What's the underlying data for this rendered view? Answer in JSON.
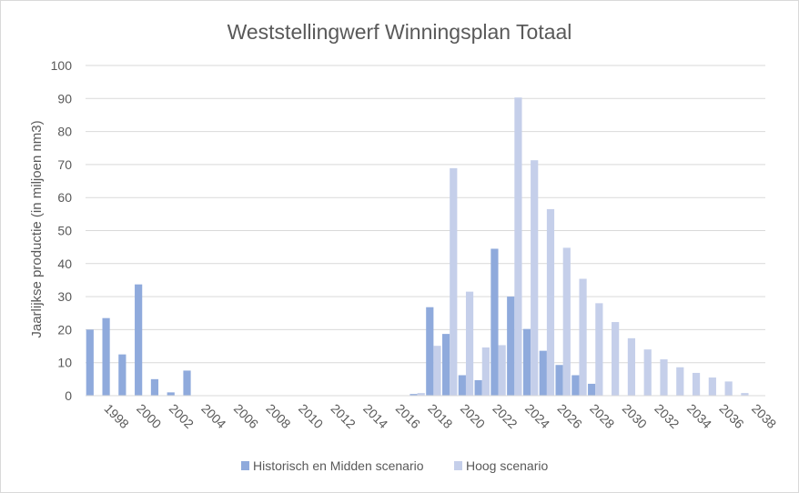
{
  "chart_data": {
    "type": "bar",
    "title": "Weststellingwerf Winningsplan Totaal",
    "xlabel": "",
    "ylabel": "Jaarlijkse  productie (in miljoen nm3)",
    "ylim": [
      0,
      100
    ],
    "yticks": [
      "0",
      "10",
      "20",
      "30",
      "40",
      "50",
      "60",
      "70",
      "80",
      "90",
      "100"
    ],
    "categories": [
      "1997",
      "1998",
      "1999",
      "2000",
      "2001",
      "2002",
      "2003",
      "2004",
      "2005",
      "2006",
      "2007",
      "2008",
      "2009",
      "2010",
      "2011",
      "2012",
      "2013",
      "2014",
      "2015",
      "2016",
      "2017",
      "2018",
      "2019",
      "2020",
      "2021",
      "2022",
      "2023",
      "2024",
      "2025",
      "2026",
      "2027",
      "2028",
      "2029",
      "2030",
      "2031",
      "2032",
      "2033",
      "2034",
      "2035",
      "2036",
      "2037",
      "2038"
    ],
    "tick_labels": [
      "1998",
      "2000",
      "2002",
      "2004",
      "2006",
      "2008",
      "2010",
      "2012",
      "2014",
      "2016",
      "2018",
      "2020",
      "2022",
      "2024",
      "2026",
      "2028",
      "2030",
      "2032",
      "2034",
      "2036",
      "2038"
    ],
    "series": [
      {
        "name": "Historisch en Midden scenario",
        "color": "#8faadc",
        "values": [
          20,
          23.5,
          12.5,
          33.7,
          5,
          1,
          7.6,
          0,
          0,
          0,
          0,
          0,
          0,
          0,
          0,
          0,
          0,
          0,
          0,
          0,
          0.5,
          26.8,
          18.7,
          6.2,
          4.7,
          44.5,
          30,
          20.2,
          13.6,
          9.3,
          6.2,
          3.6,
          0,
          0,
          0,
          0,
          0,
          0,
          0,
          0,
          0,
          0
        ]
      },
      {
        "name": "Hoog scenario",
        "color": "#c5cfea",
        "values": [
          0,
          0,
          0,
          0,
          0,
          0,
          0,
          0,
          0,
          0,
          0,
          0,
          0,
          0,
          0,
          0,
          0,
          0,
          0,
          0,
          0.8,
          15.1,
          68.9,
          31.5,
          14.6,
          15.3,
          90.3,
          71.3,
          56.5,
          44.8,
          35.4,
          28,
          22.3,
          17.4,
          14,
          11,
          8.6,
          6.9,
          5.5,
          4.3,
          0.8,
          0
        ]
      }
    ],
    "legend_position": "bottom"
  }
}
